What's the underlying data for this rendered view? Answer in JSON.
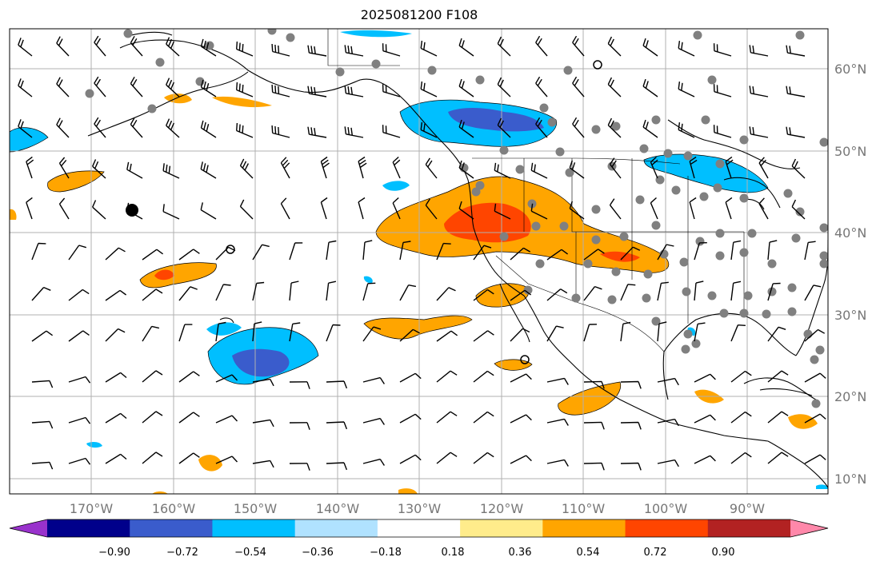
{
  "title": "2025081200 F108",
  "lat_labels": [
    "60°N",
    "50°N",
    "40°N",
    "30°N",
    "20°N",
    "10°N"
  ],
  "lon_labels": [
    "170°W",
    "160°W",
    "150°W",
    "140°W",
    "130°W",
    "120°W",
    "110°W",
    "100°W",
    "90°W"
  ],
  "colorbar": {
    "ticks": [
      "−0.90",
      "−0.72",
      "−0.54",
      "−0.36",
      "−0.18",
      "0.18",
      "0.36",
      "0.54",
      "0.72",
      "0.90"
    ],
    "colors": [
      "#9932cc",
      "#00008b",
      "#3a5ccc",
      "#00bfff",
      "#b0e2ff",
      "#ffffff",
      "#ffec8b",
      "#ffa500",
      "#ff4500",
      "#b22222",
      "#ff88aa"
    ]
  },
  "colors": {
    "grid": "#b0b0b0",
    "coast": "#000000",
    "station": "#808080"
  }
}
